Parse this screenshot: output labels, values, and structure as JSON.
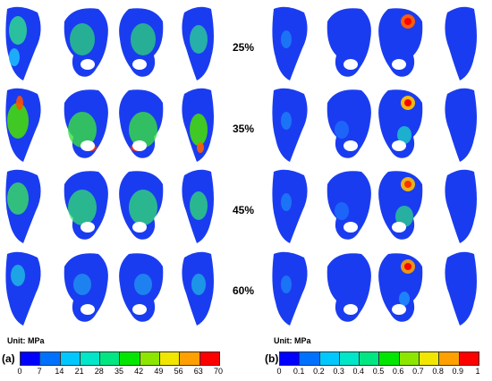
{
  "panel_a": {
    "label": "(a)",
    "unit": "Unit: MPa",
    "rows": [
      "25%",
      "35%",
      "45%",
      "60%"
    ],
    "ticks": [
      "0",
      "7",
      "14",
      "21",
      "28",
      "35",
      "42",
      "49",
      "56",
      "63",
      "70"
    ],
    "colors": [
      "#0000ff",
      "#0070ff",
      "#00c8ff",
      "#00e6c8",
      "#00e682",
      "#00e600",
      "#8ce600",
      "#f0e600",
      "#ffa000",
      "#ff0000"
    ]
  },
  "panel_b": {
    "label": "(b)",
    "unit": "Unit: MPa",
    "ticks": [
      "0",
      "0.1",
      "0.2",
      "0.3",
      "0.4",
      "0.5",
      "0.6",
      "0.7",
      "0.8",
      "0.9",
      "1"
    ],
    "colors": [
      "#0000ff",
      "#0070ff",
      "#00c8ff",
      "#00e6c8",
      "#00e682",
      "#00e600",
      "#8ce600",
      "#f0e600",
      "#ffa000",
      "#ff0000"
    ]
  }
}
